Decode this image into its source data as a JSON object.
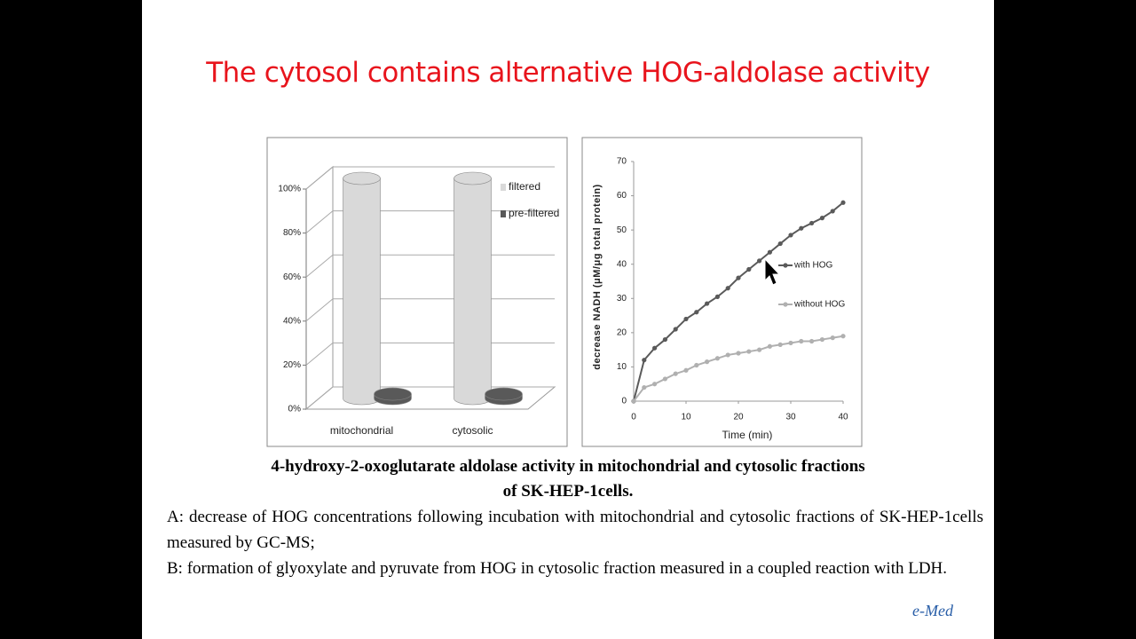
{
  "title": "The cytosol contains alternative HOG-aldolase activity",
  "chart_data": [
    {
      "type": "bar",
      "categories": [
        "mitochondrial",
        "cytosolic"
      ],
      "series": [
        {
          "name": "filtered",
          "color": "#d9d9d9",
          "values": [
            100,
            100
          ]
        },
        {
          "name": "pre-filtered",
          "color": "#595959",
          "values": [
            2,
            2
          ]
        }
      ],
      "ylim": [
        0,
        100
      ],
      "yticks": [
        {
          "value": 0,
          "label": "0%"
        },
        {
          "value": 20,
          "label": "20%"
        },
        {
          "value": 40,
          "label": "40%"
        },
        {
          "value": 60,
          "label": "60%"
        },
        {
          "value": 80,
          "label": "80%"
        },
        {
          "value": 100,
          "label": "100%"
        }
      ],
      "grid": true,
      "legend": "right"
    },
    {
      "type": "line",
      "xlabel": "Time (min)",
      "ylabel": "decrease NADH (μM/μg total protein)",
      "x": [
        0,
        2,
        4,
        6,
        8,
        10,
        12,
        14,
        16,
        18,
        20,
        22,
        24,
        26,
        28,
        30,
        32,
        34,
        36,
        38,
        40
      ],
      "series": [
        {
          "name": "with HOG",
          "color": "#5a5a5a",
          "values": [
            0,
            12,
            15.5,
            18,
            21,
            24,
            26,
            28.5,
            30.5,
            33,
            36,
            38.5,
            41,
            43.5,
            46,
            48.5,
            50.5,
            52,
            53.5,
            55.5,
            58
          ]
        },
        {
          "name": "without HOG",
          "color": "#b0b0b0",
          "values": [
            0,
            4,
            5,
            6.5,
            8,
            9,
            10.5,
            11.5,
            12.5,
            13.5,
            14,
            14.5,
            15,
            16,
            16.5,
            17,
            17.5,
            17.5,
            18,
            18.5,
            19
          ]
        }
      ],
      "xlim": [
        0,
        40
      ],
      "ylim": [
        0,
        70
      ],
      "xticks": [
        0,
        10,
        20,
        30,
        40
      ],
      "yticks": [
        0,
        10,
        20,
        30,
        40,
        50,
        60,
        70
      ],
      "grid": false,
      "legend": "right"
    }
  ],
  "caption": [
    "4-hydroxy-2-oxoglutarate  aldolase activity in mitochondrial  and cytosolic fractions",
    "of SK-HEP-1cells."
  ],
  "paragraphs": [
    "A: decrease of HOG concentrations  following incubation  with mitochondrial  and cytosolic fractions of SK-HEP-1cells measured by GC-MS;",
    "B: formation of glyoxylate  and pyruvate from HOG in cytosolic fraction measured in a coupled reaction with LDH."
  ],
  "watermark": "e-Med"
}
